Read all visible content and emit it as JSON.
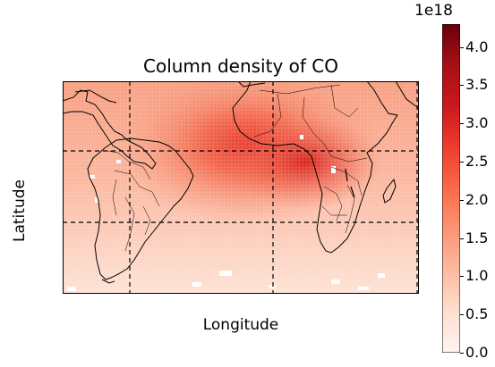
{
  "map": {
    "title": "Column density of CO",
    "xlabel": "Longitude",
    "ylabel": "Latitude",
    "features": [
      "coastlines",
      "country-borders",
      "dashed-gridlines",
      "data-grid-mesh"
    ],
    "colormap": "Reds",
    "region": "Americas and Africa (Atlantic)"
  },
  "colorbar": {
    "exponent_label": "1e18",
    "min": 0.0,
    "max": 4.3,
    "ticks": [
      "0.0",
      "0.5",
      "1.0",
      "1.5",
      "2.0",
      "2.5",
      "3.0",
      "3.5",
      "4.0"
    ],
    "colors": {
      "low": "#fff5f0",
      "mid": "#fb6a4a",
      "high": "#67000d"
    }
  }
}
